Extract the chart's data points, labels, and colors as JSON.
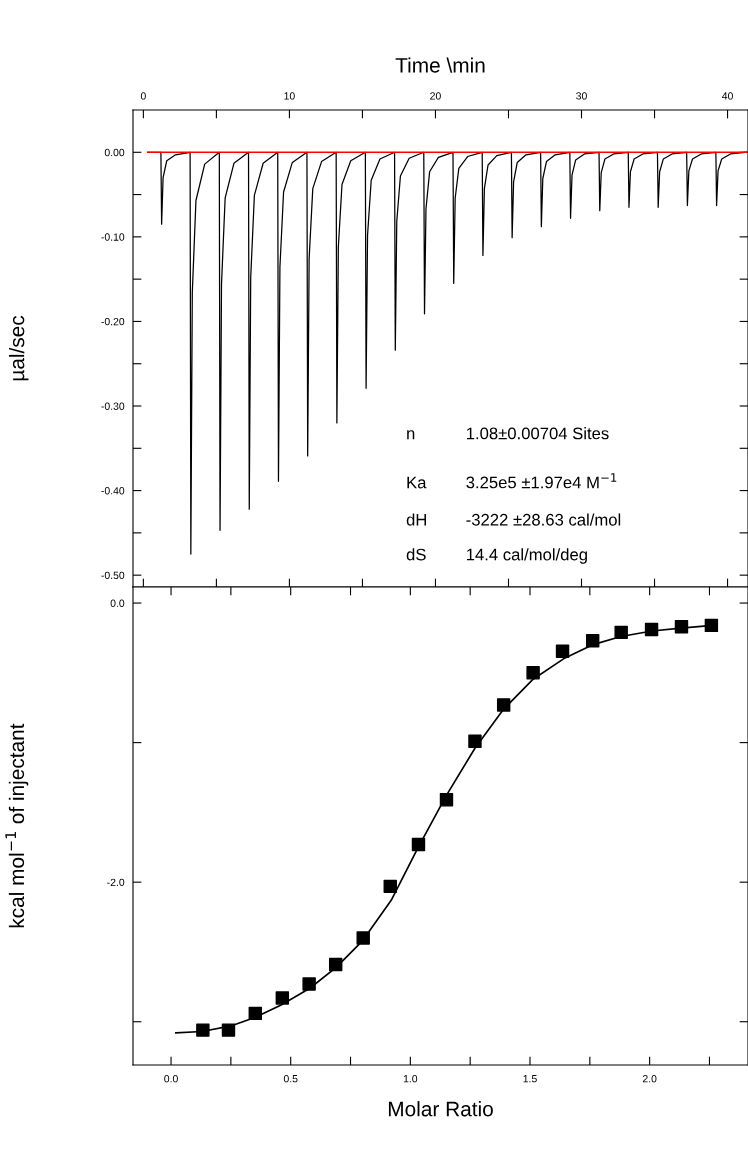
{
  "chart_data": [
    {
      "type": "line",
      "xlabel": "Time \\min",
      "ylabel": "µal/sec",
      "series": [
        {
          "color": "#000000",
          "x": [
            0.3,
            1.2,
            1.25,
            1.35,
            1.6,
            2.2,
            3.2,
            3.25,
            3.35,
            3.6,
            4.2,
            5.2,
            5.25,
            5.35,
            5.6,
            6.2,
            7.2,
            7.25,
            7.35,
            7.6,
            8.2,
            9.2,
            9.25,
            9.35,
            9.6,
            10.2,
            11.2,
            11.25,
            11.35,
            11.6,
            12.2,
            13.2,
            13.25,
            13.35,
            13.6,
            14.2,
            15.2,
            15.25,
            15.35,
            15.6,
            16.2,
            17.2,
            17.25,
            17.35,
            17.6,
            18.2,
            19.2,
            19.25,
            19.35,
            19.6,
            20.2,
            21.2,
            21.25,
            21.35,
            21.6,
            22.2,
            23.2,
            23.25,
            23.35,
            23.6,
            24.2,
            25.2,
            25.25,
            25.35,
            25.6,
            26.2,
            27.2,
            27.25,
            27.35,
            27.6,
            28.2,
            29.2,
            29.25,
            29.35,
            29.6,
            30.2,
            31.2,
            31.25,
            31.35,
            31.6,
            32.2,
            33.2,
            33.25,
            33.35,
            33.6,
            34.2,
            35.2,
            35.25,
            35.35,
            35.6,
            36.2,
            37.2,
            37.25,
            37.35,
            37.6,
            38.2,
            39.2,
            39.25,
            39.35,
            39.6,
            40.2,
            41.3
          ],
          "values": [
            0,
            0,
            -0.085,
            -0.03,
            -0.01,
            -0.003,
            0,
            -0.475,
            -0.166,
            -0.057,
            -0.014,
            0,
            -0.447,
            -0.156,
            -0.054,
            -0.013,
            0,
            -0.422,
            -0.148,
            -0.051,
            -0.013,
            0,
            -0.389,
            -0.136,
            -0.047,
            -0.012,
            0,
            -0.359,
            -0.126,
            -0.043,
            -0.011,
            0,
            -0.32,
            -0.112,
            -0.038,
            -0.01,
            0,
            -0.279,
            -0.098,
            -0.033,
            -0.008,
            0,
            -0.234,
            -0.082,
            -0.028,
            -0.007,
            0,
            -0.191,
            -0.067,
            -0.023,
            -0.006,
            0,
            -0.155,
            -0.054,
            -0.019,
            -0.005,
            0,
            -0.122,
            -0.043,
            -0.015,
            -0.004,
            0,
            -0.101,
            -0.035,
            -0.012,
            -0.003,
            0,
            -0.088,
            -0.031,
            -0.011,
            -0.003,
            0,
            -0.078,
            -0.027,
            -0.009,
            -0.002,
            0,
            -0.069,
            -0.024,
            -0.008,
            -0.002,
            0,
            -0.065,
            -0.023,
            -0.008,
            -0.002,
            0,
            -0.065,
            -0.023,
            -0.008,
            -0.002,
            0,
            -0.063,
            -0.022,
            -0.008,
            -0.002,
            0,
            -0.063,
            -0.022,
            -0.008,
            -0.002,
            0
          ]
        },
        {
          "color": "#ff0000",
          "x": [
            0.3,
            41.3
          ],
          "values": [
            0,
            0
          ]
        }
      ],
      "xlim": [
        -0.71,
        41.4
      ],
      "ylim": [
        -0.514,
        0.05
      ],
      "xticks": [
        0,
        {
          "value": 5,
          "label": null
        },
        10,
        {
          "value": 15,
          "label": null
        },
        20,
        {
          "value": 25,
          "label": null
        },
        30,
        {
          "value": 35,
          "label": null
        },
        40
      ],
      "yticks": [
        {
          "value": 0,
          "label": "0.00"
        },
        {
          "value": -0.05,
          "label": null
        },
        {
          "value": -0.1,
          "label": "-0.10"
        },
        {
          "value": -0.15,
          "label": null
        },
        {
          "value": -0.2,
          "label": "-0.20"
        },
        {
          "value": -0.25,
          "label": null
        },
        {
          "value": -0.3,
          "label": "-0.30"
        },
        {
          "value": -0.35,
          "label": null
        },
        {
          "value": -0.4,
          "label": "-0.40"
        },
        {
          "value": -0.45,
          "label": null
        },
        {
          "value": -0.5,
          "label": "-0.50"
        }
      ],
      "annotations": [
        "n",
        "1.08±0.00704 Sites",
        "Ka",
        "3.25e5 ±1.97e4 M$^{−1}$",
        "dH",
        "-3222 ±28.63 cal/mol",
        "dS",
        "14.4 cal/mol/deg"
      ]
    },
    {
      "type": "scatter",
      "xlabel": "Molar Ratio",
      "ylabel": "kcal mol$^{−1}$ of injectant",
      "series": [
        {
          "type": "scatter",
          "marker": "square",
          "color": "#000000",
          "x": [
            0.133,
            0.24,
            0.352,
            0.465,
            0.577,
            0.688,
            0.803,
            0.916,
            1.034,
            1.151,
            1.27,
            1.39,
            1.513,
            1.636,
            1.762,
            1.881,
            2.008,
            2.133,
            2.258
          ],
          "values": [
            -3.06,
            -3.06,
            -2.94,
            -2.83,
            -2.73,
            -2.59,
            -2.4,
            -2.03,
            -1.73,
            -1.41,
            -0.99,
            -0.73,
            -0.5,
            -0.345,
            -0.27,
            -0.21,
            -0.19,
            -0.17,
            -0.16
          ]
        },
        {
          "type": "line",
          "color": "#000000",
          "x": [
            0.02,
            0.13,
            0.25,
            0.35,
            0.46,
            0.58,
            0.69,
            0.8,
            0.92,
            1.03,
            1.15,
            1.27,
            1.39,
            1.51,
            1.64,
            1.76,
            1.88,
            2.01,
            2.13,
            2.26
          ],
          "values": [
            -3.08,
            -3.07,
            -3.03,
            -2.97,
            -2.88,
            -2.76,
            -2.61,
            -2.42,
            -2.13,
            -1.76,
            -1.38,
            -1.04,
            -0.76,
            -0.55,
            -0.4,
            -0.3,
            -0.24,
            -0.2,
            -0.18,
            -0.16
          ]
        }
      ],
      "xlim": [
        -0.159,
        2.411
      ],
      "ylim": [
        -3.31,
        0.115
      ],
      "xticks": [
        {
          "value": 0,
          "label": "0.0"
        },
        {
          "value": 0.25,
          "label": null
        },
        {
          "value": 0.5,
          "label": "0.5"
        },
        {
          "value": 0.75,
          "label": null
        },
        {
          "value": 1,
          "label": "1.0"
        },
        {
          "value": 1.25,
          "label": null
        },
        {
          "value": 1.5,
          "label": "1.5"
        },
        {
          "value": 1.75,
          "label": null
        },
        {
          "value": 2,
          "label": "2.0"
        },
        {
          "value": 2.25,
          "label": null
        }
      ],
      "yticks": [
        {
          "value": 0,
          "label": "0.0"
        },
        {
          "value": -1,
          "label": null
        },
        {
          "value": -2,
          "label": "-2.0"
        },
        {
          "value": -3,
          "label": null
        }
      ]
    }
  ]
}
